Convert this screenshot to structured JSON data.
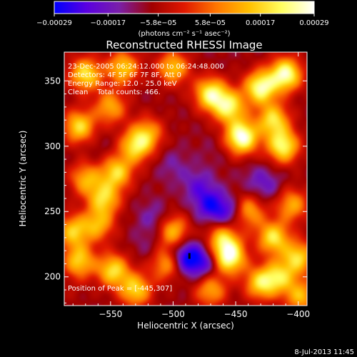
{
  "chart_data": {
    "type": "heatmap",
    "title": "Reconstructed RHESSI Image",
    "xlabel": "Heliocentric X (arcsec)",
    "ylabel": "Heliocentric Y (arcsec)",
    "xlim": [
      -587,
      -393
    ],
    "ylim": [
      178,
      372
    ],
    "xticks": [
      {
        "value": -550,
        "label": "−550"
      },
      {
        "value": -500,
        "label": "−500"
      },
      {
        "value": -450,
        "label": "−450"
      },
      {
        "value": -400,
        "label": "−400"
      }
    ],
    "yticks": [
      {
        "value": 200,
        "label": "200"
      },
      {
        "value": 250,
        "label": "250"
      },
      {
        "value": 300,
        "label": "300"
      },
      {
        "value": 350,
        "label": "350"
      }
    ],
    "colorbar": {
      "min": -0.00029,
      "max": 0.00029,
      "ticks": [
        {
          "value": -0.00029,
          "label": "−0.00029"
        },
        {
          "value": -0.00017,
          "label": "−0.00017"
        },
        {
          "value": -5.8e-05,
          "label": "−5.8e−05"
        },
        {
          "value": 5.8e-05,
          "label": "5.8e−05"
        },
        {
          "value": 0.00017,
          "label": "0.00017"
        },
        {
          "value": 0.00029,
          "label": "0.00029"
        }
      ],
      "units_label": "(photons cm⁻² s⁻¹ asec⁻²)",
      "colors": [
        "#0000ff",
        "#5a00e0",
        "#7a1fa8",
        "#a00000",
        "#e01800",
        "#ff7700",
        "#ffc000",
        "#ffff60",
        "#ffffff"
      ]
    },
    "annotations": [
      "23-Dec-2005 06:24:12.000 to 06:24:48.000",
      "Detectors: 4F 5F 6F 7F 8F, Att 0",
      "Energy Range: 12.0 - 25.0 keV",
      "Clean    Total counts: 466."
    ],
    "peak_label": "Position of Peak = [-445,307]",
    "peak": [
      -445,
      307
    ],
    "sources": [
      {
        "x": -445,
        "y": 307,
        "amp": 0.00029
      },
      {
        "x": -430,
        "y": 345,
        "amp": 0.00025
      },
      {
        "x": -410,
        "y": 355,
        "amp": 0.00026
      },
      {
        "x": -470,
        "y": 340,
        "amp": 0.00022
      },
      {
        "x": -455,
        "y": 330,
        "amp": 0.0002
      },
      {
        "x": -412,
        "y": 300,
        "amp": 0.00022
      },
      {
        "x": -420,
        "y": 320,
        "amp": 0.00018
      },
      {
        "x": -500,
        "y": 360,
        "amp": 0.00015
      },
      {
        "x": -540,
        "y": 360,
        "amp": 0.00016
      },
      {
        "x": -570,
        "y": 355,
        "amp": 0.00019
      },
      {
        "x": -575,
        "y": 315,
        "amp": 0.00018
      },
      {
        "x": -550,
        "y": 330,
        "amp": 0.00012
      },
      {
        "x": -530,
        "y": 300,
        "amp": 0.00017
      },
      {
        "x": -545,
        "y": 280,
        "amp": 0.00017
      },
      {
        "x": -555,
        "y": 260,
        "amp": 0.00016
      },
      {
        "x": -520,
        "y": 310,
        "amp": 0.0001
      },
      {
        "x": -570,
        "y": 275,
        "amp": 0.00012
      },
      {
        "x": -580,
        "y": 235,
        "amp": 0.00015
      },
      {
        "x": -560,
        "y": 240,
        "amp": 0.00012
      },
      {
        "x": -575,
        "y": 212,
        "amp": 0.00016
      },
      {
        "x": -548,
        "y": 205,
        "amp": 0.00018
      },
      {
        "x": -530,
        "y": 190,
        "amp": 0.00017
      },
      {
        "x": -505,
        "y": 210,
        "amp": 0.00012
      },
      {
        "x": -500,
        "y": 235,
        "amp": 0.00014
      },
      {
        "x": -455,
        "y": 215,
        "amp": 0.00026
      },
      {
        "x": -460,
        "y": 230,
        "amp": 0.00015
      },
      {
        "x": -420,
        "y": 230,
        "amp": 0.00019
      },
      {
        "x": -400,
        "y": 215,
        "amp": 0.00017
      },
      {
        "x": -430,
        "y": 195,
        "amp": 0.00017
      },
      {
        "x": -415,
        "y": 200,
        "amp": 0.00014
      },
      {
        "x": -398,
        "y": 185,
        "amp": 0.00013
      },
      {
        "x": -470,
        "y": 190,
        "amp": 0.00012
      },
      {
        "x": -440,
        "y": 250,
        "amp": 0.00013
      },
      {
        "x": -405,
        "y": 255,
        "amp": 0.00012
      },
      {
        "x": -480,
        "y": 270,
        "amp": -0.00018
      },
      {
        "x": -470,
        "y": 255,
        "amp": -0.00024
      },
      {
        "x": -455,
        "y": 248,
        "amp": -0.00022
      },
      {
        "x": -490,
        "y": 215,
        "amp": -0.00029
      },
      {
        "x": -475,
        "y": 210,
        "amp": -0.00022
      },
      {
        "x": -515,
        "y": 245,
        "amp": -0.00016
      },
      {
        "x": -500,
        "y": 285,
        "amp": -0.00014
      },
      {
        "x": -425,
        "y": 270,
        "amp": -0.00016
      },
      {
        "x": -435,
        "y": 275,
        "amp": -0.00012
      },
      {
        "x": -520,
        "y": 225,
        "amp": -0.00012
      },
      {
        "x": -560,
        "y": 300,
        "amp": -0.0001
      },
      {
        "x": -470,
        "y": 295,
        "amp": -0.0001
      },
      {
        "x": -480,
        "y": 320,
        "amp": -8e-05
      },
      {
        "x": -580,
        "y": 190,
        "amp": -6e-05
      }
    ],
    "background": -8e-05
  },
  "footer": {
    "date": "8-Jul-2013 11:45"
  }
}
